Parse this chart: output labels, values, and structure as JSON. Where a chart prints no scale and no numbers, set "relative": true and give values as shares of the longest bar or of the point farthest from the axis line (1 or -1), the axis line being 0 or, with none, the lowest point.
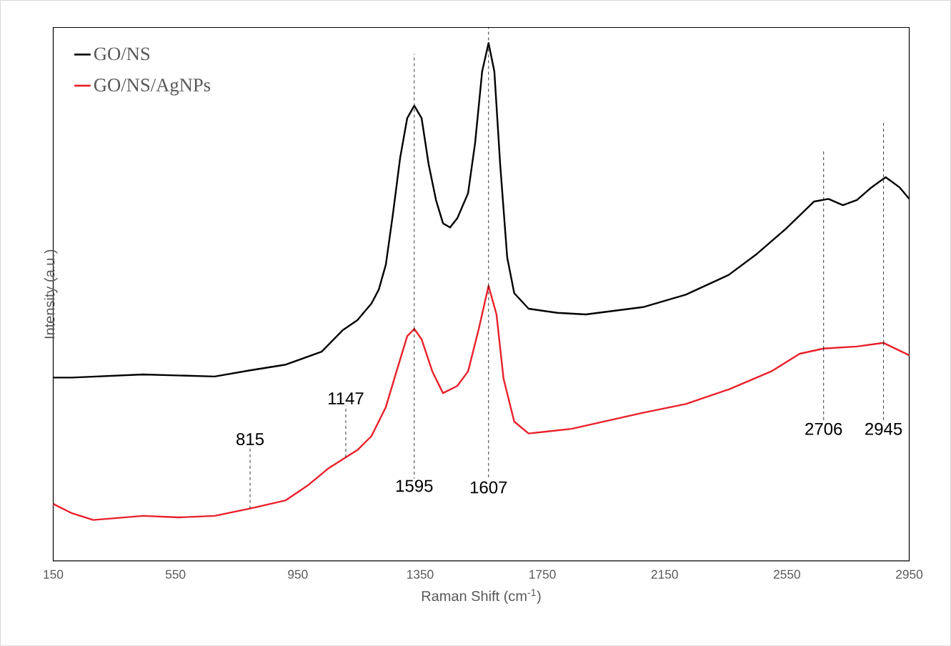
{
  "chart_data": {
    "type": "line",
    "relative": true,
    "xlabel": "Raman Shift (cm$^{-1}$)",
    "ylabel": "Intensity (a.u.)",
    "xlim": [
      150,
      2950
    ],
    "xticks": [
      150,
      550,
      950,
      1350,
      1750,
      2150,
      2550,
      2950
    ],
    "legend": "top left",
    "series": [
      {
        "name": "GO/NS",
        "color": "#000000",
        "x": [
          150,
          211,
          444,
          678,
          794,
          911,
          1028,
          1098,
          1145,
          1191,
          1215,
          1238,
          1261,
          1285,
          1308,
          1331,
          1355,
          1378,
          1402,
          1425,
          1448,
          1472,
          1507,
          1530,
          1553,
          1574,
          1593,
          1612,
          1635,
          1658,
          1705,
          1799,
          1892,
          2079,
          2219,
          2359,
          2452,
          2546,
          2639,
          2686,
          2733,
          2779,
          2826,
          2873,
          2919,
          2950
        ],
        "values": [
          0.354,
          0.354,
          0.36,
          0.356,
          0.368,
          0.379,
          0.404,
          0.446,
          0.465,
          0.497,
          0.524,
          0.572,
          0.669,
          0.779,
          0.855,
          0.879,
          0.855,
          0.766,
          0.697,
          0.652,
          0.644,
          0.662,
          0.71,
          0.807,
          0.945,
          1.0,
          0.945,
          0.766,
          0.586,
          0.517,
          0.487,
          0.479,
          0.476,
          0.49,
          0.514,
          0.552,
          0.593,
          0.641,
          0.694,
          0.699,
          0.687,
          0.697,
          0.721,
          0.741,
          0.721,
          0.699
        ]
      },
      {
        "name": "GO/NS/AgNPs",
        "color": "#e8202a",
        "x": [
          150,
          211,
          281,
          444,
          561,
          678,
          794,
          911,
          981,
          1051,
          1107,
          1145,
          1191,
          1238,
          1273,
          1308,
          1331,
          1355,
          1390,
          1425,
          1472,
          1507,
          1542,
          1574,
          1600,
          1623,
          1658,
          1705,
          1845,
          2079,
          2219,
          2359,
          2499,
          2592,
          2670,
          2779,
          2866,
          2950
        ],
        "values": [
          0.11,
          0.092,
          0.079,
          0.087,
          0.084,
          0.087,
          0.101,
          0.117,
          0.145,
          0.179,
          0.2,
          0.214,
          0.241,
          0.297,
          0.366,
          0.434,
          0.448,
          0.428,
          0.366,
          0.324,
          0.338,
          0.366,
          0.448,
          0.531,
          0.476,
          0.352,
          0.269,
          0.246,
          0.255,
          0.286,
          0.303,
          0.331,
          0.366,
          0.4,
          0.41,
          0.414,
          0.421,
          0.397
        ]
      }
    ],
    "annotations": [
      {
        "text": "815",
        "x": 794,
        "y": 0.101
      },
      {
        "text": "1147",
        "x": 1107,
        "y": 0.2
      },
      {
        "text": "1595",
        "x": 1331,
        "y": 0.448
      },
      {
        "text": "1607",
        "x": 1574,
        "y": 0.531
      },
      {
        "text": "2706",
        "x": 2670,
        "y": 0.41
      },
      {
        "text": "2945",
        "x": 2866,
        "y": 0.421
      }
    ]
  }
}
